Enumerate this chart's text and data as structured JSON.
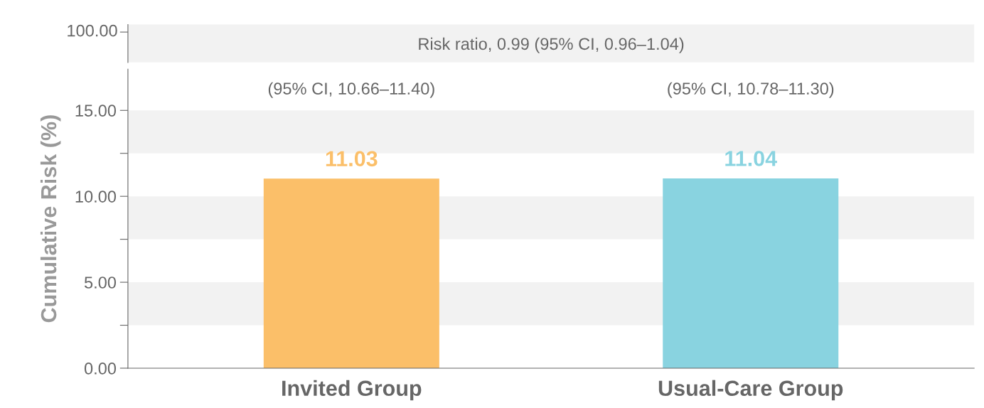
{
  "chart_data": [
    {
      "type": "other",
      "annotations": [
        "100.00",
        "Risk ratio, 0.99 (95% CI, 0.96–1.04)"
      ]
    },
    {
      "type": "bar",
      "ylabel": "Cumulative Risk (%)",
      "categories": [
        "Invited Group",
        "Usual-Care Group"
      ],
      "values": [
        11.03,
        11.04
      ],
      "colors": [
        "#fbbf69",
        "#89d3e0"
      ],
      "data_labels": true,
      "ylim": [
        0,
        17.4
      ],
      "yticks": [
        {
          "value": 0,
          "label": "0.00"
        },
        {
          "value": 2.5,
          "label": null
        },
        {
          "value": 5,
          "label": "5.00"
        },
        {
          "value": 7.5,
          "label": null
        },
        {
          "value": 10,
          "label": "10.00"
        },
        {
          "value": 12.5,
          "label": null
        },
        {
          "value": 15,
          "label": "15.00"
        }
      ],
      "bands": [
        {
          "axis": "y",
          "from": 2.5,
          "to": 5,
          "color": "#f2f2f2"
        },
        {
          "axis": "y",
          "from": 7.5,
          "to": 10,
          "color": "#f2f2f2"
        },
        {
          "axis": "y",
          "from": 12.5,
          "to": 15,
          "color": "#f2f2f2"
        }
      ],
      "annotations": [
        "(95% CI, 10.66–11.40)",
        "(95% CI, 10.78–11.30)"
      ]
    }
  ]
}
